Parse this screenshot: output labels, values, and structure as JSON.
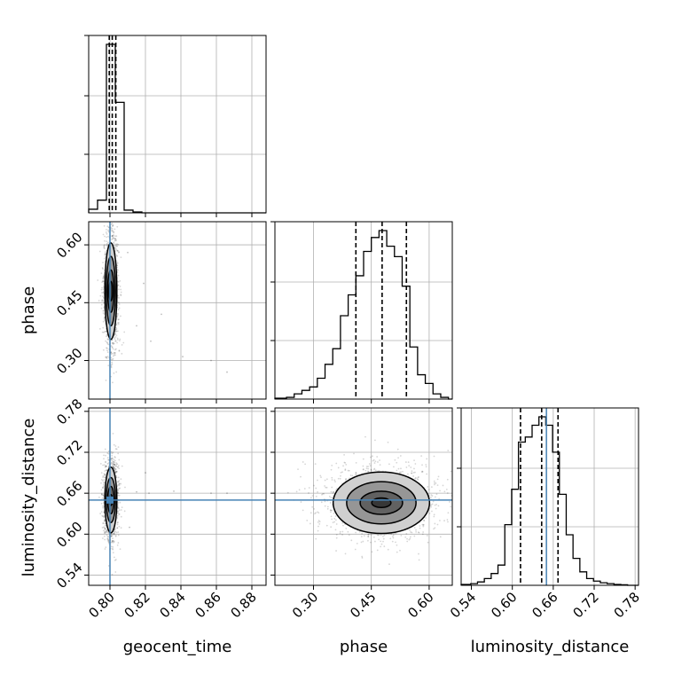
{
  "chart_data": {
    "type": "corner",
    "parameters": [
      "geocent_time",
      "phase",
      "luminosity_distance"
    ],
    "axis_labels": {
      "geocent_time": "geocent_time",
      "phase": "phase",
      "luminosity_distance": "luminosity_distance"
    },
    "ranges": {
      "geocent_time": [
        0.788,
        0.888
      ],
      "phase": [
        0.2,
        0.66
      ],
      "luminosity_distance": [
        0.525,
        0.785
      ]
    },
    "ticks": {
      "geocent_time": [
        "0.80",
        "0.82",
        "0.84",
        "0.86",
        "0.88"
      ],
      "phase": [
        "0.30",
        "0.45",
        "0.60"
      ],
      "luminosity_distance": [
        "0.54",
        "0.60",
        "0.66",
        "0.72",
        "0.78"
      ]
    },
    "truths": {
      "geocent_time": 0.8,
      "luminosity_distance": 0.65
    },
    "truth_color": "#4682b4",
    "grid": true,
    "histograms": {
      "geocent_time": {
        "bin_edges": [
          0.788,
          0.793,
          0.798,
          0.803,
          0.808,
          0.813,
          0.818
        ],
        "density": [
          0.02,
          0.07,
          0.93,
          0.61,
          0.015,
          0.005
        ],
        "quantiles": [
          0.7996,
          0.8013,
          0.8033
        ]
      },
      "phase": {
        "bin_edges": [
          0.2,
          0.23,
          0.25,
          0.27,
          0.29,
          0.31,
          0.33,
          0.35,
          0.37,
          0.39,
          0.41,
          0.43,
          0.45,
          0.47,
          0.49,
          0.51,
          0.53,
          0.55,
          0.57,
          0.59,
          0.61,
          0.63,
          0.65
        ],
        "density": [
          0.005,
          0.01,
          0.03,
          0.05,
          0.07,
          0.12,
          0.2,
          0.29,
          0.48,
          0.6,
          0.71,
          0.85,
          0.93,
          0.97,
          0.88,
          0.82,
          0.65,
          0.3,
          0.14,
          0.09,
          0.03,
          0.01
        ],
        "quantiles": [
          0.41,
          0.478,
          0.541
        ]
      },
      "luminosity_distance": {
        "bin_edges": [
          0.525,
          0.539,
          0.549,
          0.559,
          0.569,
          0.579,
          0.589,
          0.599,
          0.609,
          0.619,
          0.629,
          0.639,
          0.649,
          0.659,
          0.669,
          0.679,
          0.689,
          0.699,
          0.709,
          0.719,
          0.729,
          0.739,
          0.749,
          0.759,
          0.769
        ],
        "density": [
          0.005,
          0.01,
          0.02,
          0.04,
          0.07,
          0.12,
          0.36,
          0.57,
          0.85,
          0.88,
          0.95,
          1.0,
          0.95,
          0.79,
          0.54,
          0.3,
          0.16,
          0.08,
          0.04,
          0.025,
          0.015,
          0.01,
          0.005,
          0.003
        ],
        "quantiles": [
          0.612,
          0.643,
          0.667
        ]
      }
    },
    "panels_2d": [
      {
        "x": "geocent_time",
        "y": "phase",
        "center": [
          0.8005,
          0.48
        ],
        "contour_half_widths": [
          [
            0.001,
            0.025
          ],
          [
            0.0018,
            0.055
          ],
          [
            0.0026,
            0.09
          ],
          [
            0.0034,
            0.125
          ]
        ],
        "outliers": [
          [
            0.815,
            0.39
          ],
          [
            0.823,
            0.35
          ],
          [
            0.829,
            0.42
          ],
          [
            0.841,
            0.31
          ],
          [
            0.857,
            0.3
          ],
          [
            0.866,
            0.27
          ],
          [
            0.81,
            0.58
          ],
          [
            0.819,
            0.5
          ]
        ]
      },
      {
        "x": "geocent_time",
        "y": "luminosity_distance",
        "center": [
          0.8005,
          0.65
        ],
        "contour_half_widths": [
          [
            0.001,
            0.008
          ],
          [
            0.0018,
            0.02
          ],
          [
            0.0026,
            0.033
          ],
          [
            0.0034,
            0.048
          ]
        ],
        "outliers": [
          [
            0.815,
            0.662
          ],
          [
            0.822,
            0.66
          ],
          [
            0.836,
            0.663
          ],
          [
            0.857,
            0.66
          ],
          [
            0.866,
            0.66
          ],
          [
            0.811,
            0.61
          ],
          [
            0.82,
            0.69
          ]
        ]
      },
      {
        "x": "phase",
        "y": "luminosity_distance",
        "center": [
          0.476,
          0.646
        ],
        "contour_half_widths": [
          [
            0.025,
            0.007
          ],
          [
            0.055,
            0.017
          ],
          [
            0.09,
            0.031
          ],
          [
            0.125,
            0.045
          ]
        ],
        "outliers": []
      }
    ]
  }
}
